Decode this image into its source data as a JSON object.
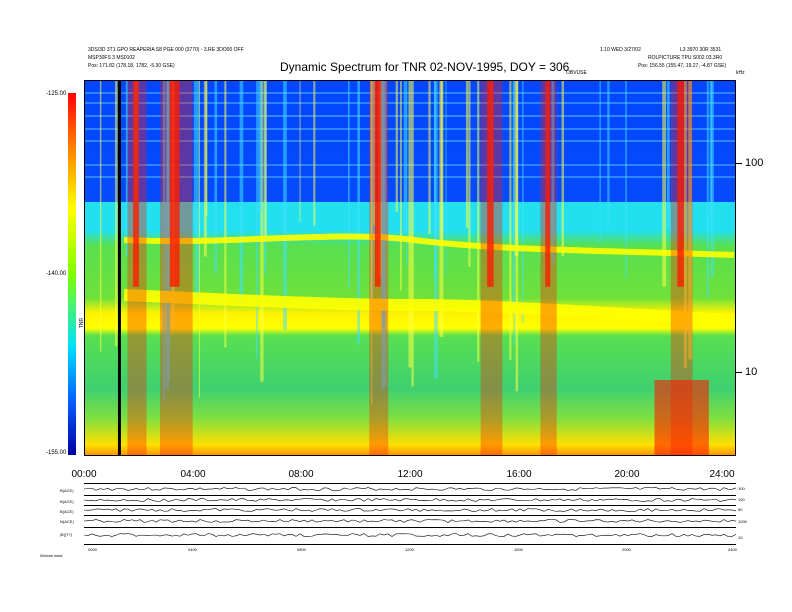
{
  "header": {
    "left_line1": "3DS/3D 3T1 GPO REAPERIA S8 PGE 000 (3770) - 3.RE 3DO00 OFF",
    "left_line2": "MSP30FS 3 MS0102",
    "left_line3": "Pos:   171.82 (178.18, 1782, -5.30 GSE)",
    "right_line1": "1.10 WED 3/27/02",
    "right_line2": "L3 3970 30R 3531",
    "right_line3": "ROLPICTURE  TPU S002 03.3R0",
    "right_line4": "Pos:   156.55 (155.47, 19.27, -4.87 GSE)",
    "marker_label": "OBVUSE"
  },
  "chart_data": {
    "type": "heatmap",
    "title": "Dynamic Spectrum for TNR 02-NOV-1995, DOY = 306",
    "x_tick_labels": [
      "00:00",
      "04:00",
      "08:00",
      "12:00",
      "16:00",
      "20:00",
      "24:00"
    ],
    "x_range_hours": [
      0,
      24
    ],
    "y_scale": "log",
    "y_tick_labels": [
      "100",
      "10"
    ],
    "y_unit_label": "kHz",
    "colorbar_labels": [
      "-125.00",
      "-140.00",
      "-155.00"
    ],
    "colorbar_range": [
      -155,
      -125
    ],
    "colorbar_unit": "TNR",
    "black_marker_hour": 1.25,
    "emission_bands": [
      {
        "start": 1.6,
        "end": 2.3
      },
      {
        "start": 2.8,
        "end": 4.0
      },
      {
        "start": 10.5,
        "end": 11.2
      },
      {
        "start": 14.6,
        "end": 15.4
      },
      {
        "start": 16.8,
        "end": 17.4
      },
      {
        "start": 21.6,
        "end": 22.4
      }
    ]
  },
  "bottom_panel": {
    "row_labels": [
      "B(ACE)",
      "B(ACE)",
      "B(ACE)",
      "N(ACE)",
      "|B|(T?)"
    ],
    "right_labels": [
      "100",
      "100",
      "50",
      "1000",
      "10"
    ],
    "x_tick_labels": [
      "0000",
      "0400",
      "0800",
      "1200",
      "1600",
      "2000",
      "2400"
    ],
    "footer_label": "Wolves   wind"
  },
  "colors": {
    "background_blue": "#0030ff",
    "burst_red": "#ff1a00",
    "cyan": "#22e0f0",
    "yellow": "#ffff00",
    "green": "#6fe03a"
  }
}
